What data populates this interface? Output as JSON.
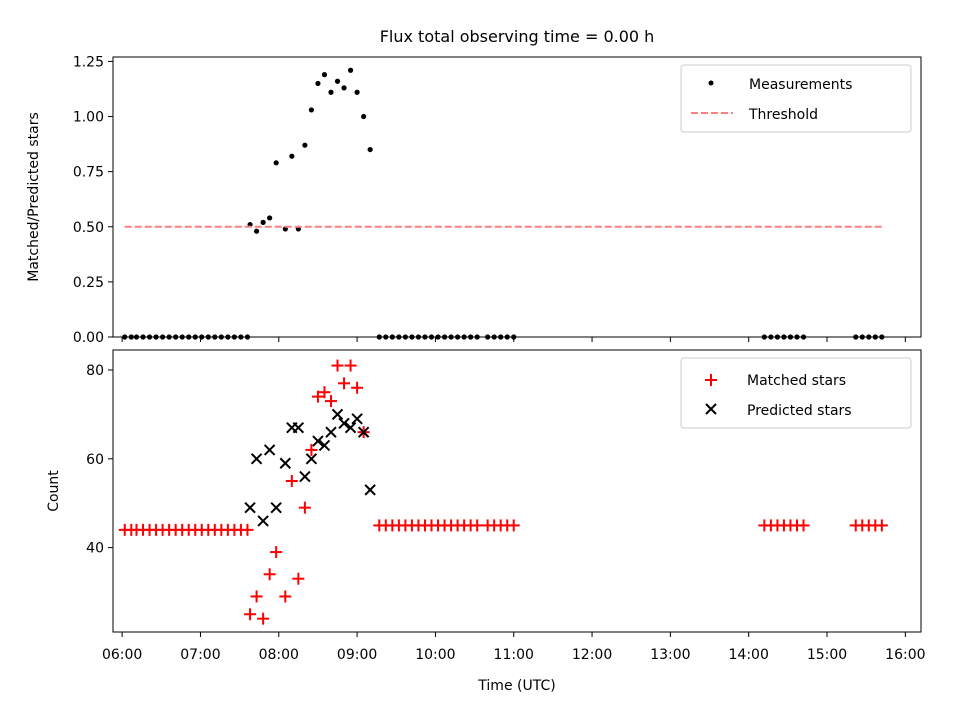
{
  "figure": {
    "title": "Flux total observing time = 0.00 h"
  },
  "chart_data": [
    {
      "type": "scatter",
      "ylabel": "Matched/Predicted stars",
      "xlabel": "",
      "ylim": [
        0,
        1.27
      ],
      "xlim": [
        "05:53",
        "16:12"
      ],
      "yticks": [
        "0.00",
        "0.25",
        "0.50",
        "0.75",
        "1.00",
        "1.25"
      ],
      "legend": {
        "placement": "top-right",
        "entries": [
          "Measurements",
          "Threshold"
        ]
      },
      "series": [
        {
          "name": "Measurements",
          "marker": "dot",
          "color": "#000000",
          "points": [
            [
              "06:02",
              0
            ],
            [
              "06:07",
              0
            ],
            [
              "06:11",
              0
            ],
            [
              "06:16",
              0
            ],
            [
              "06:21",
              0
            ],
            [
              "06:26",
              0
            ],
            [
              "06:31",
              0
            ],
            [
              "06:36",
              0
            ],
            [
              "06:41",
              0
            ],
            [
              "06:46",
              0
            ],
            [
              "06:51",
              0
            ],
            [
              "06:56",
              0
            ],
            [
              "07:01",
              0
            ],
            [
              "07:06",
              0
            ],
            [
              "07:11",
              0
            ],
            [
              "07:16",
              0
            ],
            [
              "07:21",
              0
            ],
            [
              "07:26",
              0
            ],
            [
              "07:31",
              0
            ],
            [
              "07:36",
              0
            ],
            [
              "07:38",
              0.51
            ],
            [
              "07:43",
              0.48
            ],
            [
              "07:48",
              0.52
            ],
            [
              "07:53",
              0.54
            ],
            [
              "07:58",
              0.79
            ],
            [
              "08:05",
              0.49
            ],
            [
              "08:10",
              0.82
            ],
            [
              "08:15",
              0.49
            ],
            [
              "08:20",
              0.87
            ],
            [
              "08:25",
              1.03
            ],
            [
              "08:30",
              1.15
            ],
            [
              "08:35",
              1.19
            ],
            [
              "08:40",
              1.11
            ],
            [
              "08:45",
              1.16
            ],
            [
              "08:50",
              1.13
            ],
            [
              "08:55",
              1.21
            ],
            [
              "09:00",
              1.11
            ],
            [
              "09:05",
              1.0
            ],
            [
              "09:10",
              0.85
            ],
            [
              "09:17",
              0
            ],
            [
              "09:22",
              0
            ],
            [
              "09:27",
              0
            ],
            [
              "09:32",
              0
            ],
            [
              "09:37",
              0
            ],
            [
              "09:42",
              0
            ],
            [
              "09:47",
              0
            ],
            [
              "09:52",
              0
            ],
            [
              "09:57",
              0
            ],
            [
              "10:02",
              0
            ],
            [
              "10:07",
              0
            ],
            [
              "10:12",
              0
            ],
            [
              "10:17",
              0
            ],
            [
              "10:22",
              0
            ],
            [
              "10:27",
              0
            ],
            [
              "10:32",
              0
            ],
            [
              "10:40",
              0
            ],
            [
              "10:45",
              0
            ],
            [
              "10:50",
              0
            ],
            [
              "10:55",
              0
            ],
            [
              "11:00",
              0
            ],
            [
              "14:12",
              0
            ],
            [
              "14:17",
              0
            ],
            [
              "14:22",
              0
            ],
            [
              "14:27",
              0
            ],
            [
              "14:32",
              0
            ],
            [
              "14:37",
              0
            ],
            [
              "14:42",
              0
            ],
            [
              "15:22",
              0
            ],
            [
              "15:27",
              0
            ],
            [
              "15:32",
              0
            ],
            [
              "15:37",
              0
            ],
            [
              "15:42",
              0
            ]
          ]
        },
        {
          "name": "Threshold",
          "style": "dashed",
          "color": "#ff7f7f",
          "points": [
            [
              "06:02",
              0.5
            ],
            [
              "15:42",
              0.5
            ]
          ]
        }
      ]
    },
    {
      "type": "scatter",
      "ylabel": "Count",
      "xlabel": "Time (UTC)",
      "ylim": [
        21,
        84.5
      ],
      "xlim": [
        "05:53",
        "16:12"
      ],
      "yticks": [
        "40",
        "60",
        "80"
      ],
      "xticks": [
        "06:00",
        "07:00",
        "08:00",
        "09:00",
        "10:00",
        "11:00",
        "12:00",
        "13:00",
        "14:00",
        "15:00",
        "16:00"
      ],
      "legend": {
        "placement": "top-right",
        "entries": [
          "Matched stars",
          "Predicted stars"
        ]
      },
      "series": [
        {
          "name": "Matched stars",
          "marker": "plus",
          "color": "#ff0000",
          "points": [
            [
              "06:02",
              44
            ],
            [
              "06:07",
              44
            ],
            [
              "06:11",
              44
            ],
            [
              "06:16",
              44
            ],
            [
              "06:21",
              44
            ],
            [
              "06:26",
              44
            ],
            [
              "06:31",
              44
            ],
            [
              "06:36",
              44
            ],
            [
              "06:41",
              44
            ],
            [
              "06:46",
              44
            ],
            [
              "06:51",
              44
            ],
            [
              "06:56",
              44
            ],
            [
              "07:01",
              44
            ],
            [
              "07:06",
              44
            ],
            [
              "07:11",
              44
            ],
            [
              "07:16",
              44
            ],
            [
              "07:21",
              44
            ],
            [
              "07:26",
              44
            ],
            [
              "07:31",
              44
            ],
            [
              "07:36",
              44
            ],
            [
              "07:38",
              25
            ],
            [
              "07:43",
              29
            ],
            [
              "07:48",
              24
            ],
            [
              "07:53",
              34
            ],
            [
              "07:58",
              39
            ],
            [
              "08:05",
              29
            ],
            [
              "08:10",
              55
            ],
            [
              "08:15",
              33
            ],
            [
              "08:20",
              49
            ],
            [
              "08:25",
              62
            ],
            [
              "08:30",
              74
            ],
            [
              "08:35",
              75
            ],
            [
              "08:40",
              73
            ],
            [
              "08:45",
              81
            ],
            [
              "08:50",
              77
            ],
            [
              "08:55",
              81
            ],
            [
              "09:00",
              76
            ],
            [
              "09:05",
              66
            ],
            [
              "09:17",
              45
            ],
            [
              "09:22",
              45
            ],
            [
              "09:27",
              45
            ],
            [
              "09:32",
              45
            ],
            [
              "09:37",
              45
            ],
            [
              "09:42",
              45
            ],
            [
              "09:47",
              45
            ],
            [
              "09:52",
              45
            ],
            [
              "09:57",
              45
            ],
            [
              "10:02",
              45
            ],
            [
              "10:07",
              45
            ],
            [
              "10:12",
              45
            ],
            [
              "10:17",
              45
            ],
            [
              "10:22",
              45
            ],
            [
              "10:27",
              45
            ],
            [
              "10:32",
              45
            ],
            [
              "10:40",
              45
            ],
            [
              "10:45",
              45
            ],
            [
              "10:50",
              45
            ],
            [
              "10:55",
              45
            ],
            [
              "11:00",
              45
            ],
            [
              "14:12",
              45
            ],
            [
              "14:17",
              45
            ],
            [
              "14:22",
              45
            ],
            [
              "14:27",
              45
            ],
            [
              "14:32",
              45
            ],
            [
              "14:37",
              45
            ],
            [
              "14:42",
              45
            ],
            [
              "15:22",
              45
            ],
            [
              "15:27",
              45
            ],
            [
              "15:32",
              45
            ],
            [
              "15:37",
              45
            ],
            [
              "15:42",
              45
            ]
          ]
        },
        {
          "name": "Predicted stars",
          "marker": "x",
          "color": "#000000",
          "points": [
            [
              "07:38",
              49
            ],
            [
              "07:43",
              60
            ],
            [
              "07:48",
              46
            ],
            [
              "07:53",
              62
            ],
            [
              "07:58",
              49
            ],
            [
              "08:05",
              59
            ],
            [
              "08:10",
              67
            ],
            [
              "08:15",
              67
            ],
            [
              "08:20",
              56
            ],
            [
              "08:25",
              60
            ],
            [
              "08:30",
              64
            ],
            [
              "08:35",
              63
            ],
            [
              "08:40",
              66
            ],
            [
              "08:45",
              70
            ],
            [
              "08:50",
              68
            ],
            [
              "08:55",
              67
            ],
            [
              "09:00",
              69
            ],
            [
              "09:05",
              66
            ],
            [
              "09:10",
              53
            ]
          ]
        }
      ]
    }
  ]
}
